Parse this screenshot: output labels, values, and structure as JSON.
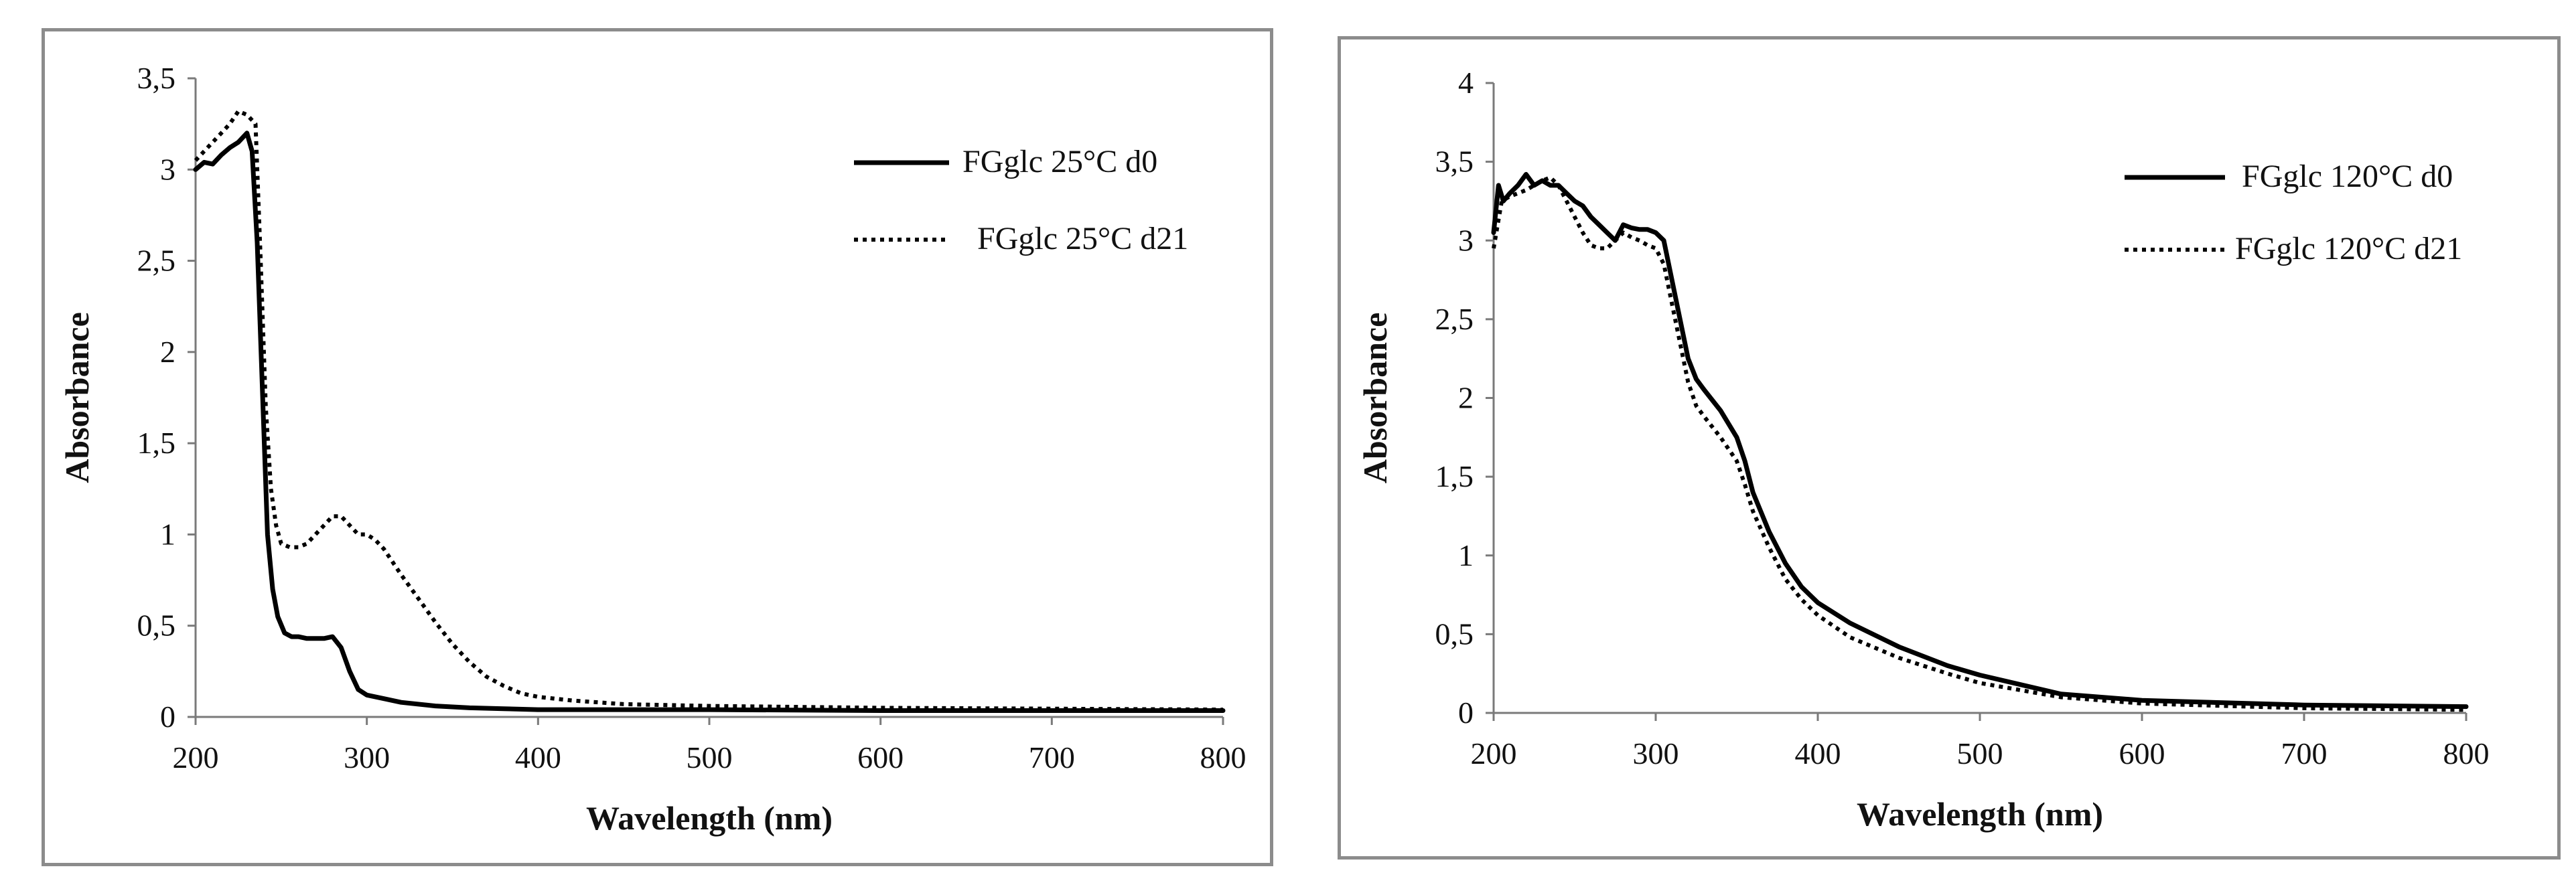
{
  "chart_data": [
    {
      "type": "line",
      "xlabel": "Wavelength (nm)",
      "ylabel": "Absorbance",
      "xlim": [
        200,
        800
      ],
      "ylim": [
        0,
        3.5
      ],
      "xticks": [
        200,
        300,
        400,
        500,
        600,
        700,
        800
      ],
      "xtick_labels": [
        "200",
        "300",
        "400",
        "500",
        "600",
        "700",
        "800"
      ],
      "yticks": [
        0,
        0.5,
        1,
        1.5,
        2,
        2.5,
        3,
        3.5
      ],
      "ytick_labels": [
        "0",
        "0,5",
        "1",
        "1,5",
        "2",
        "2,5",
        "3",
        "3,5"
      ],
      "grid": false,
      "legend_position": "top-right",
      "series": [
        {
          "name": "FGglc 25°C d0",
          "style": "solid",
          "color": "#000000",
          "x": [
            200,
            205,
            210,
            215,
            220,
            225,
            230,
            233,
            236,
            239,
            242,
            245,
            248,
            252,
            256,
            260,
            265,
            270,
            275,
            280,
            285,
            290,
            295,
            300,
            310,
            320,
            340,
            360,
            380,
            400,
            450,
            500,
            600,
            700,
            800
          ],
          "y": [
            3.0,
            3.04,
            3.03,
            3.08,
            3.12,
            3.15,
            3.2,
            3.1,
            2.6,
            1.8,
            1.0,
            0.7,
            0.55,
            0.46,
            0.44,
            0.44,
            0.43,
            0.43,
            0.43,
            0.44,
            0.38,
            0.25,
            0.15,
            0.12,
            0.1,
            0.08,
            0.06,
            0.05,
            0.045,
            0.04,
            0.04,
            0.04,
            0.035,
            0.035,
            0.035
          ]
        },
        {
          "name": "FGglc 25°C d21",
          "style": "dotted",
          "color": "#000000",
          "x": [
            200,
            205,
            210,
            215,
            220,
            225,
            230,
            235,
            238,
            241,
            244,
            247,
            250,
            255,
            260,
            265,
            270,
            275,
            280,
            285,
            290,
            295,
            300,
            305,
            310,
            320,
            330,
            340,
            350,
            360,
            370,
            380,
            390,
            400,
            420,
            450,
            500,
            600,
            700,
            800
          ],
          "y": [
            3.05,
            3.1,
            3.15,
            3.2,
            3.25,
            3.32,
            3.3,
            3.25,
            2.5,
            1.7,
            1.25,
            1.05,
            0.95,
            0.93,
            0.93,
            0.95,
            1.0,
            1.05,
            1.1,
            1.1,
            1.05,
            1.0,
            1.0,
            0.97,
            0.92,
            0.78,
            0.65,
            0.52,
            0.4,
            0.3,
            0.22,
            0.17,
            0.13,
            0.11,
            0.09,
            0.07,
            0.06,
            0.05,
            0.045,
            0.04
          ]
        }
      ]
    },
    {
      "type": "line",
      "xlabel": "Wavelength (nm)",
      "ylabel": "Absorbance",
      "xlim": [
        200,
        800
      ],
      "ylim": [
        0,
        4
      ],
      "xticks": [
        200,
        300,
        400,
        500,
        600,
        700,
        800
      ],
      "xtick_labels": [
        "200",
        "300",
        "400",
        "500",
        "600",
        "700",
        "800"
      ],
      "yticks": [
        0,
        0.5,
        1,
        1.5,
        2,
        2.5,
        3,
        3.5,
        4
      ],
      "ytick_labels": [
        "0",
        "0,5",
        "1",
        "1,5",
        "2",
        "2,5",
        "3",
        "3,5",
        "4"
      ],
      "grid": false,
      "legend_position": "top-right",
      "series": [
        {
          "name": "FGglc 120°C d0",
          "style": "solid",
          "color": "#000000",
          "x": [
            200,
            203,
            206,
            210,
            215,
            220,
            225,
            230,
            235,
            240,
            245,
            250,
            255,
            260,
            265,
            270,
            275,
            280,
            285,
            290,
            295,
            300,
            305,
            310,
            315,
            320,
            325,
            330,
            340,
            350,
            355,
            360,
            370,
            380,
            390,
            400,
            420,
            450,
            480,
            500,
            550,
            600,
            700,
            800
          ],
          "y": [
            3.05,
            3.35,
            3.25,
            3.3,
            3.35,
            3.42,
            3.35,
            3.38,
            3.35,
            3.35,
            3.3,
            3.25,
            3.22,
            3.15,
            3.1,
            3.05,
            3.0,
            3.1,
            3.08,
            3.07,
            3.07,
            3.05,
            3.0,
            2.75,
            2.5,
            2.25,
            2.12,
            2.05,
            1.92,
            1.75,
            1.6,
            1.4,
            1.15,
            0.95,
            0.8,
            0.7,
            0.57,
            0.42,
            0.3,
            0.24,
            0.12,
            0.08,
            0.05,
            0.04
          ]
        },
        {
          "name": "FGglc 120°C d21",
          "style": "dotted",
          "color": "#000000",
          "x": [
            200,
            205,
            210,
            215,
            220,
            225,
            230,
            235,
            240,
            245,
            250,
            255,
            260,
            265,
            270,
            275,
            280,
            285,
            290,
            295,
            300,
            305,
            310,
            315,
            320,
            325,
            330,
            340,
            350,
            355,
            360,
            370,
            380,
            390,
            400,
            420,
            450,
            480,
            500,
            550,
            600,
            700,
            800
          ],
          "y": [
            2.95,
            3.25,
            3.28,
            3.3,
            3.32,
            3.35,
            3.38,
            3.4,
            3.35,
            3.25,
            3.15,
            3.05,
            2.97,
            2.95,
            2.95,
            3.0,
            3.05,
            3.02,
            3.0,
            2.97,
            2.95,
            2.85,
            2.6,
            2.35,
            2.1,
            1.95,
            1.88,
            1.75,
            1.6,
            1.45,
            1.28,
            1.05,
            0.85,
            0.72,
            0.62,
            0.48,
            0.35,
            0.25,
            0.19,
            0.1,
            0.06,
            0.03,
            0.02
          ]
        }
      ]
    }
  ]
}
